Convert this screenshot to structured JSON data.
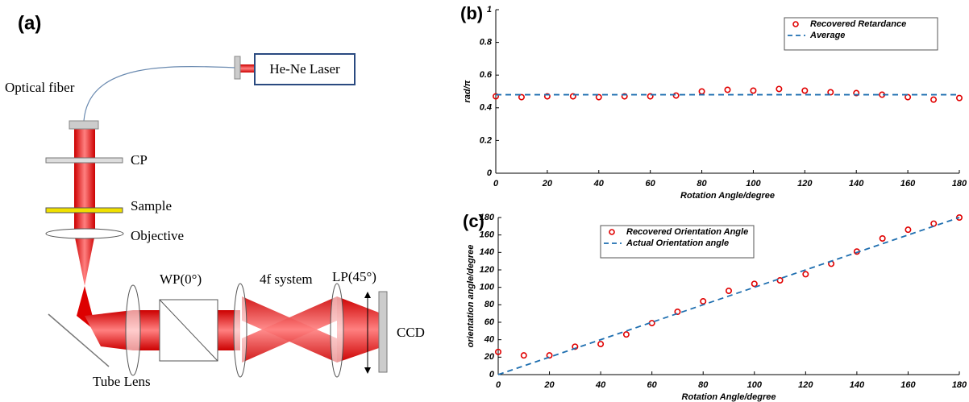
{
  "diagram": {
    "label": "(a)",
    "laser": "He-Ne Laser",
    "fiber": "Optical fiber",
    "cp": "CP",
    "sample": "Sample",
    "objective": "Objective",
    "tube_lens": "Tube Lens",
    "wp": "WP(0°)",
    "four_f": "4f system",
    "lp": "LP(45°)",
    "ccd": "CCD"
  },
  "chart_data": [
    {
      "type": "scatter",
      "title": "(b)",
      "x_label": "Rotation Angle/degree",
      "y_label": "rad/π",
      "xlim": [
        0,
        180
      ],
      "xticks": [
        0,
        20,
        40,
        60,
        80,
        100,
        120,
        140,
        160,
        180
      ],
      "ylim": [
        0,
        1
      ],
      "yticks": [
        0,
        0.2,
        0.4,
        0.6,
        0.8,
        1
      ],
      "legend": "upper right",
      "series": [
        {
          "name": "Recovered Retardance",
          "color": "#e00000",
          "marker": "circle",
          "x": [
            0,
            10,
            20,
            30,
            40,
            50,
            60,
            70,
            80,
            90,
            100,
            110,
            120,
            130,
            140,
            150,
            160,
            170,
            180
          ],
          "values": [
            0.47,
            0.465,
            0.47,
            0.47,
            0.465,
            0.47,
            0.47,
            0.475,
            0.5,
            0.51,
            0.505,
            0.515,
            0.505,
            0.495,
            0.49,
            0.48,
            0.465,
            0.45,
            0.46
          ]
        },
        {
          "name": "Average",
          "color": "#1f6fb0",
          "marker": "dashed-line",
          "x": [
            0,
            180
          ],
          "values": [
            0.48,
            0.48
          ]
        }
      ]
    },
    {
      "type": "scatter",
      "title": "(c)",
      "x_label": "Rotation Angle/degree",
      "y_label": "orientation angle/degree",
      "xlim": [
        0,
        180
      ],
      "xticks": [
        0,
        20,
        40,
        60,
        80,
        100,
        120,
        140,
        160,
        180
      ],
      "ylim": [
        0,
        180
      ],
      "yticks": [
        0,
        20,
        40,
        60,
        80,
        100,
        120,
        140,
        160,
        180
      ],
      "legend": "upper left",
      "series": [
        {
          "name": "Recovered Orientation Angle",
          "color": "#e00000",
          "marker": "circle",
          "x": [
            0,
            10,
            20,
            30,
            40,
            50,
            60,
            70,
            80,
            90,
            100,
            110,
            120,
            130,
            140,
            150,
            160,
            170,
            180
          ],
          "values": [
            26,
            22,
            22,
            32,
            35,
            46,
            59,
            72,
            84,
            96,
            104,
            108,
            115,
            127,
            141,
            156,
            166,
            173,
            180
          ]
        },
        {
          "name": "Actual Orientation angle",
          "color": "#1f6fb0",
          "marker": "dashed-line",
          "x": [
            0,
            180
          ],
          "values": [
            0,
            180
          ]
        }
      ]
    }
  ]
}
